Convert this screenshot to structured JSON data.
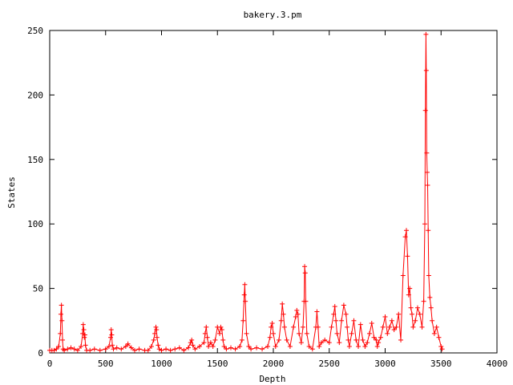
{
  "chart_data": {
    "type": "line",
    "title": "bakery.3.pm",
    "xlabel": "Depth",
    "ylabel": "States",
    "xlim": [
      0,
      4000
    ],
    "ylim": [
      0,
      250
    ],
    "x_ticks": [
      0,
      500,
      1000,
      1500,
      2000,
      2500,
      3000,
      3500,
      4000
    ],
    "y_ticks": [
      0,
      50,
      100,
      150,
      200,
      250
    ],
    "x_tick_labels": [
      "0",
      "500",
      "1000",
      "1500",
      "2000",
      "2500",
      "3000",
      "3500",
      "4000"
    ],
    "y_tick_labels": [
      "0",
      "50",
      "100",
      "150",
      "200",
      "250"
    ],
    "grid": false,
    "legend": "none",
    "series_color": "#ff0000",
    "marker": "+",
    "series": [
      {
        "name": "",
        "x": [
          0,
          20,
          40,
          60,
          80,
          95,
          100,
          105,
          110,
          115,
          120,
          130,
          160,
          190,
          220,
          250,
          280,
          295,
          300,
          305,
          310,
          315,
          320,
          330,
          360,
          400,
          450,
          500,
          530,
          545,
          550,
          555,
          560,
          570,
          600,
          640,
          680,
          700,
          730,
          760,
          800,
          850,
          880,
          910,
          930,
          940,
          950,
          955,
          960,
          970,
          980,
          1000,
          1040,
          1080,
          1120,
          1160,
          1200,
          1240,
          1260,
          1270,
          1280,
          1300,
          1340,
          1380,
          1390,
          1400,
          1410,
          1420,
          1440,
          1460,
          1480,
          1500,
          1520,
          1530,
          1540,
          1550,
          1560,
          1580,
          1620,
          1660,
          1700,
          1720,
          1730,
          1740,
          1745,
          1750,
          1760,
          1780,
          1800,
          1850,
          1900,
          1950,
          1970,
          1980,
          1990,
          2000,
          2020,
          2050,
          2070,
          2080,
          2090,
          2100,
          2120,
          2150,
          2180,
          2200,
          2210,
          2220,
          2230,
          2250,
          2265,
          2275,
          2280,
          2285,
          2290,
          2300,
          2320,
          2350,
          2380,
          2390,
          2400,
          2410,
          2430,
          2460,
          2500,
          2520,
          2540,
          2550,
          2560,
          2570,
          2590,
          2610,
          2630,
          2650,
          2660,
          2670,
          2680,
          2700,
          2720,
          2740,
          2760,
          2780,
          2800,
          2820,
          2840,
          2860,
          2880,
          2900,
          2920,
          2930,
          2940,
          2960,
          2980,
          3000,
          3020,
          3040,
          3060,
          3080,
          3100,
          3120,
          3140,
          3160,
          3180,
          3190,
          3200,
          3210,
          3220,
          3230,
          3240,
          3250,
          3270,
          3290,
          3310,
          3330,
          3345,
          3355,
          3360,
          3365,
          3368,
          3372,
          3376,
          3380,
          3385,
          3390,
          3400,
          3410,
          3420,
          3440,
          3460,
          3480,
          3500,
          3510
        ],
        "y": [
          2,
          2,
          2,
          3,
          5,
          15,
          30,
          37,
          25,
          10,
          3,
          2,
          3,
          4,
          3,
          2,
          5,
          15,
          22,
          18,
          12,
          14,
          6,
          2,
          2,
          3,
          2,
          3,
          5,
          12,
          18,
          14,
          6,
          3,
          4,
          3,
          5,
          7,
          4,
          2,
          3,
          2,
          2,
          5,
          10,
          15,
          20,
          18,
          12,
          6,
          3,
          2,
          3,
          2,
          3,
          4,
          2,
          4,
          8,
          10,
          6,
          3,
          5,
          8,
          15,
          20,
          12,
          5,
          8,
          5,
          10,
          20,
          15,
          20,
          18,
          10,
          5,
          3,
          4,
          3,
          5,
          10,
          25,
          45,
          53,
          40,
          15,
          5,
          3,
          4,
          3,
          5,
          12,
          20,
          23,
          15,
          5,
          10,
          25,
          38,
          30,
          20,
          10,
          5,
          20,
          28,
          33,
          30,
          15,
          8,
          20,
          40,
          67,
          62,
          40,
          15,
          5,
          3,
          20,
          32,
          20,
          5,
          8,
          10,
          8,
          20,
          30,
          36,
          25,
          15,
          8,
          25,
          37,
          30,
          20,
          10,
          5,
          15,
          25,
          10,
          5,
          22,
          10,
          5,
          8,
          15,
          23,
          12,
          10,
          5,
          8,
          12,
          20,
          28,
          15,
          20,
          25,
          18,
          20,
          30,
          10,
          60,
          90,
          95,
          75,
          45,
          50,
          35,
          30,
          20,
          25,
          35,
          30,
          20,
          40,
          100,
          188,
          247,
          219,
          155,
          140,
          130,
          95,
          60,
          43,
          35,
          25,
          15,
          20,
          12,
          5,
          3
        ]
      }
    ]
  }
}
